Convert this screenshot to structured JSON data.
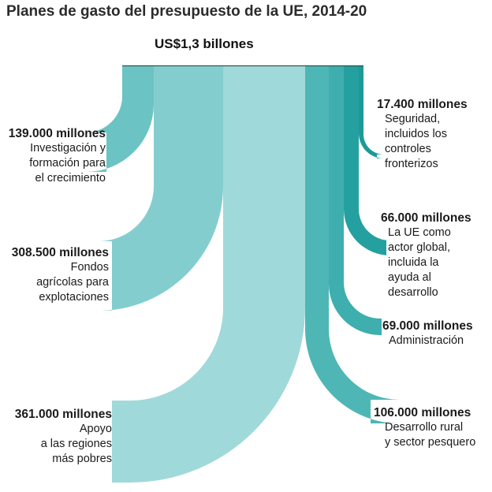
{
  "title": "Planes de gasto del presupuesto de la UE, 2014-20",
  "total_label": "US$1,3 billones",
  "chart_data": {
    "type": "sankey",
    "title": "Planes de gasto del presupuesto de la UE, 2014-20",
    "total": "US$1,3 billones",
    "unit": "millones",
    "flows": [
      {
        "id": "investigacion",
        "side": "left",
        "value": 139000,
        "amount_label": "139.000 millones",
        "desc_lines": [
          "Investigación y",
          "formación para",
          "el crecimiento"
        ],
        "color": "#6cc3c3"
      },
      {
        "id": "agricola",
        "side": "left",
        "value": 308500,
        "amount_label": "308.500 millones",
        "desc_lines": [
          "Fondos",
          "agrícolas para",
          "explotaciones"
        ],
        "color": "#84cdcf"
      },
      {
        "id": "regiones",
        "side": "left",
        "value": 361000,
        "amount_label": "361.000 millones",
        "desc_lines": [
          "Apoyo",
          "a las regiones",
          "más pobres"
        ],
        "color": "#a0d9d9"
      },
      {
        "id": "rural",
        "side": "right",
        "value": 106000,
        "amount_label": "106.000 millones",
        "desc_lines": [
          "Desarrollo rural",
          "y sector pesquero"
        ],
        "color": "#4fb6b6"
      },
      {
        "id": "administracion",
        "side": "right",
        "value": 69000,
        "amount_label": "69.000 millones",
        "desc_lines": [
          "Administración"
        ],
        "color": "#3eaeae"
      },
      {
        "id": "global",
        "side": "right",
        "value": 66000,
        "amount_label": "66.000  millones",
        "desc_lines": [
          "La UE como",
          "actor global,",
          "incluida la",
          "ayuda al",
          "desarrollo"
        ],
        "color": "#25a0a0"
      },
      {
        "id": "seguridad",
        "side": "right",
        "value": 17400,
        "amount_label": "17.400  millones",
        "desc_lines": [
          "Seguridad,",
          "incluidos los",
          "controles",
          "fronterizos"
        ],
        "color": "#1e9999"
      }
    ]
  }
}
